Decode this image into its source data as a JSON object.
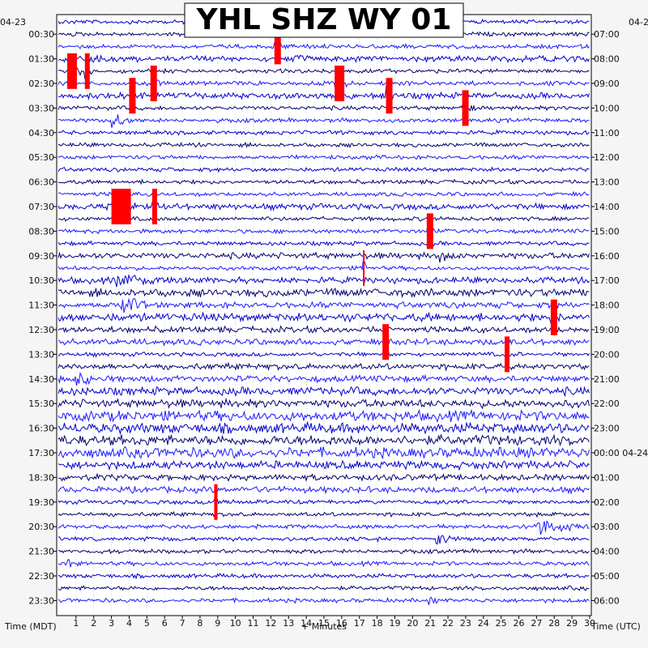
{
  "chart_data": {
    "type": "line",
    "title": "YHL SHZ WY 01",
    "xlabel": "+ Minutes",
    "left_axis_label": "Time (MDT)",
    "right_axis_label": "Time (UTC)",
    "left_date_label": "04-23",
    "right_date_label": "04-2",
    "right_date_rollover_label": "04-24",
    "x_range": [
      0,
      30
    ],
    "x_ticks": [
      "1",
      "2",
      "3",
      "4",
      "5",
      "6",
      "7",
      "8",
      "9",
      "10",
      "11",
      "12",
      "13",
      "14",
      "15",
      "16",
      "17",
      "18",
      "19",
      "20",
      "21",
      "22",
      "23",
      "24",
      "25",
      "26",
      "27",
      "28",
      "29",
      "30"
    ],
    "left_ticks": [
      "00:30",
      "01:30",
      "02:30",
      "03:30",
      "04:30",
      "05:30",
      "06:30",
      "07:30",
      "08:30",
      "09:30",
      "10:30",
      "11:30",
      "12:30",
      "13:30",
      "14:30",
      "15:30",
      "16:30",
      "17:30",
      "18:30",
      "19:30",
      "20:30",
      "21:30",
      "22:30",
      "23:30"
    ],
    "right_ticks": [
      "07:00",
      "08:00",
      "09:00",
      "10:00",
      "11:00",
      "12:00",
      "13:00",
      "14:00",
      "15:00",
      "16:00",
      "17:00",
      "18:00",
      "19:00",
      "20:00",
      "21:00",
      "22:00",
      "23:00",
      "00:00",
      "01:00",
      "02:00",
      "03:00",
      "04:00",
      "05:00",
      "06:00"
    ],
    "trace_count": 48,
    "trace_colors": [
      "#0000cc",
      "#000070",
      "#1a1aff"
    ],
    "clip_color": "#ff0000",
    "noise_levels": [
      2,
      2,
      2,
      3,
      2,
      2,
      3,
      2,
      2,
      2,
      2,
      2,
      2,
      2,
      2,
      3,
      2,
      2,
      2,
      3,
      2,
      3,
      4,
      3,
      4,
      3,
      3,
      2,
      3,
      3,
      4,
      4,
      5,
      5,
      5,
      5,
      4,
      3,
      3,
      2,
      2,
      2,
      2,
      2,
      2,
      2,
      2,
      2
    ],
    "events": [
      {
        "trace": 4,
        "minute": 0.5,
        "clipped": true,
        "duration": 0.6
      },
      {
        "trace": 4,
        "minute": 1.5,
        "clipped": true,
        "duration": 0.3
      },
      {
        "trace": 5,
        "minute": 5.2,
        "clipped": true,
        "duration": 0.4
      },
      {
        "trace": 6,
        "minute": 4.0,
        "clipped": true,
        "duration": 0.4
      },
      {
        "trace": 2,
        "minute": 12.2,
        "clipped": true,
        "duration": 0.4
      },
      {
        "trace": 5,
        "minute": 15.6,
        "clipped": true,
        "duration": 0.6
      },
      {
        "trace": 6,
        "minute": 18.5,
        "clipped": true,
        "duration": 0.4
      },
      {
        "trace": 7,
        "minute": 22.8,
        "clipped": true,
        "duration": 0.4
      },
      {
        "trace": 8,
        "minute": 3.0,
        "clipped": false,
        "duration": 1.0
      },
      {
        "trace": 15,
        "minute": 3.0,
        "clipped": true,
        "duration": 1.2
      },
      {
        "trace": 15,
        "minute": 5.3,
        "clipped": true,
        "duration": 0.3
      },
      {
        "trace": 17,
        "minute": 20.8,
        "clipped": true,
        "duration": 0.4
      },
      {
        "trace": 19,
        "minute": 21.5,
        "clipped": false,
        "duration": 0.5
      },
      {
        "trace": 20,
        "minute": 17.2,
        "clipped": true,
        "duration": 0.1
      },
      {
        "trace": 21,
        "minute": 3.2,
        "clipped": false,
        "duration": 3.0
      },
      {
        "trace": 23,
        "minute": 3.5,
        "clipped": false,
        "duration": 2.0
      },
      {
        "trace": 24,
        "minute": 27.8,
        "clipped": true,
        "duration": 0.4
      },
      {
        "trace": 26,
        "minute": 18.3,
        "clipped": true,
        "duration": 0.4
      },
      {
        "trace": 27,
        "minute": 25.2,
        "clipped": true,
        "duration": 0.3
      },
      {
        "trace": 29,
        "minute": 1.0,
        "clipped": false,
        "duration": 1.0
      },
      {
        "trace": 39,
        "minute": 8.8,
        "clipped": true,
        "duration": 0.2
      },
      {
        "trace": 41,
        "minute": 27.0,
        "clipped": false,
        "duration": 2.0
      },
      {
        "trace": 42,
        "minute": 21.2,
        "clipped": false,
        "duration": 1.0
      },
      {
        "trace": 44,
        "minute": 0.5,
        "clipped": false,
        "duration": 0.3
      },
      {
        "trace": 47,
        "minute": 20.8,
        "clipped": false,
        "duration": 0.4
      }
    ]
  }
}
